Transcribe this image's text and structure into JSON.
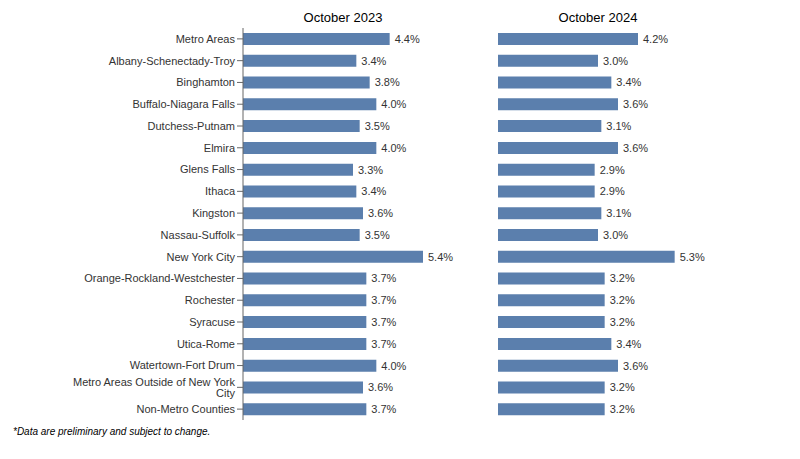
{
  "chart_data": {
    "type": "bar",
    "orientation": "horizontal",
    "categories": [
      "Metro Areas",
      "Albany-Schenectady-Troy",
      "Binghamton",
      "Buffalo-Niagara Falls",
      "Dutchess-Putnam",
      "Elmira",
      "Glens Falls",
      "Ithaca",
      "Kingston",
      "Nassau-Suffolk",
      "New York City",
      "Orange-Rockland-Westchester",
      "Rochester",
      "Syracuse",
      "Utica-Rome",
      "Watertown-Fort Drum",
      "Metro Areas Outside of New York City",
      "Non-Metro Counties"
    ],
    "series": [
      {
        "name": "October 2023",
        "color": "#5b7fad",
        "values": [
          4.4,
          3.4,
          3.8,
          4.0,
          3.5,
          4.0,
          3.3,
          3.4,
          3.6,
          3.5,
          5.4,
          3.7,
          3.7,
          3.7,
          3.7,
          4.0,
          3.6,
          3.7
        ],
        "value_labels": [
          "4.4%",
          "3.4%",
          "3.8%",
          "4.0%",
          "3.5%",
          "4.0%",
          "3.3%",
          "3.4%",
          "3.6%",
          "3.5%",
          "5.4%",
          "3.7%",
          "3.7%",
          "3.7%",
          "3.7%",
          "4.0%",
          "3.6%",
          "3.7%"
        ]
      },
      {
        "name": "October 2024",
        "color": "#5b7fad",
        "values": [
          4.2,
          3.0,
          3.4,
          3.6,
          3.1,
          3.6,
          2.9,
          2.9,
          3.1,
          3.0,
          5.3,
          3.2,
          3.2,
          3.2,
          3.4,
          3.6,
          3.2,
          3.2
        ],
        "value_labels": [
          "4.2%",
          "3.0%",
          "3.4%",
          "3.6%",
          "3.1%",
          "3.6%",
          "2.9%",
          "2.9%",
          "3.1%",
          "3.0%",
          "5.3%",
          "3.2%",
          "3.2%",
          "3.2%",
          "3.4%",
          "3.6%",
          "3.2%",
          "3.2%"
        ]
      }
    ],
    "xlim": [
      0,
      6
    ],
    "data_labels": true,
    "tick_labels": "y",
    "annotations": [
      "*Data are preliminary and subject to change."
    ]
  }
}
